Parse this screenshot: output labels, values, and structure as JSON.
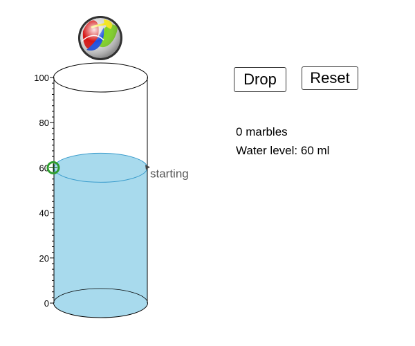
{
  "buttons": {
    "drop_label": "Drop",
    "reset_label": "Reset"
  },
  "status": {
    "marble_count": "0",
    "marbles_unit": "marbles",
    "water_prefix": "Water level:",
    "water_value": "60",
    "water_unit": "ml"
  },
  "scale": {
    "tick_labels": [
      "0",
      "20",
      "40",
      "60",
      "80",
      "100"
    ],
    "max": 100,
    "water_level": 60
  },
  "start_marker": {
    "label": "starting",
    "value": 60
  },
  "icons": {
    "marble": "marble-icon",
    "level_handle": "level-handle-icon"
  },
  "colors": {
    "water": "#a8daed",
    "water_edge": "#3b9ccc",
    "handle": "#2e9d2e"
  }
}
